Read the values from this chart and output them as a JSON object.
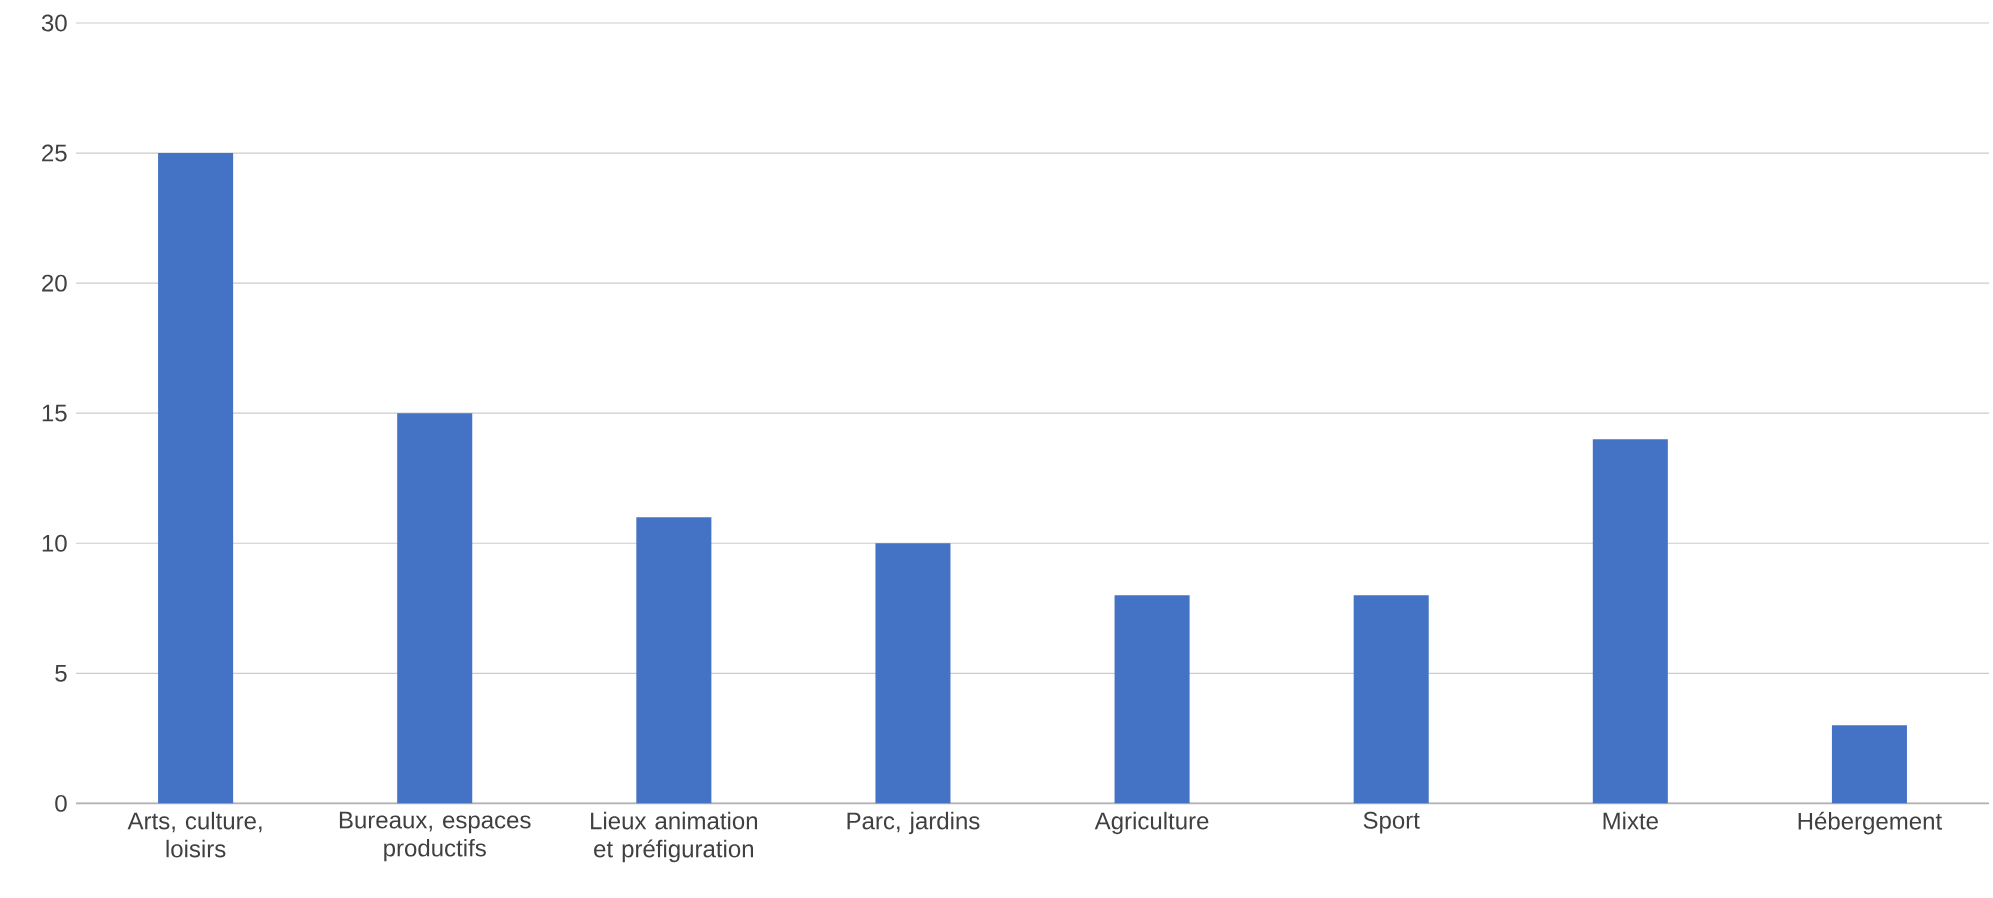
{
  "chart_data": {
    "type": "bar",
    "categories": [
      "Arts, culture, loisirs",
      "Bureaux, espaces productifs",
      "Lieux animation et préfiguration",
      "Parc, jardins",
      "Agriculture",
      "Sport",
      "Mixte",
      "Hébergement"
    ],
    "values": [
      25,
      15,
      11,
      10,
      8,
      8,
      14,
      3
    ],
    "color": "#4472c4",
    "ylim": [
      0,
      30
    ],
    "yticks": [
      0,
      5,
      10,
      15,
      20,
      25,
      30
    ],
    "grid": "y"
  }
}
